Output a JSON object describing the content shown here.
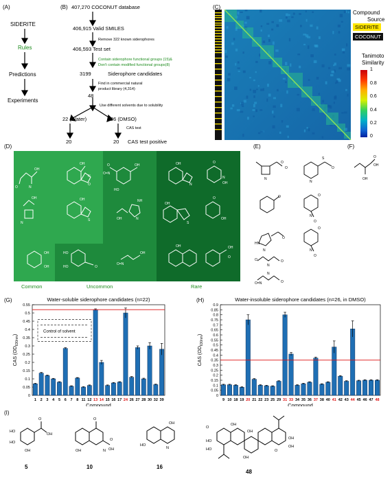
{
  "panels": {
    "a": {
      "letter": "(A)",
      "steps": [
        "SIDERITE",
        "Rules",
        "Predictions",
        "Experiments"
      ]
    },
    "b": {
      "letter": "(B)",
      "db": "407,270 COCONUT database",
      "valid": "406,915 Valid SMILES",
      "remove_note": "Remove 322 known siderophores",
      "test_set": "406,593 Test set",
      "contain_note_1": "Contain siderophore functional groups (15)&",
      "contain_note_2": "Don't contain modified functional groups(8)",
      "candidates_num": "3199",
      "candidates_label": "Siderophore candidates",
      "find_note_1": "Find in commercial natural",
      "find_note_2": "product library (4,314)",
      "n48": "48",
      "solvent_note": "Use different solvents due to solubility",
      "water": "22 (Water)",
      "dmso": "26 (DMSO)",
      "cas_test": "CAS test",
      "left20": "20",
      "right20": "20",
      "cas_positive": "CAS test positive"
    },
    "c": {
      "letter": "(C)",
      "legend_title_1": "Compound",
      "legend_title_2": "Source",
      "siderite_label": "SIDERITE",
      "coconut_label": "COCONUT",
      "scale_title_1": "Tanimoto",
      "scale_title_2": "Similarity",
      "scale_ticks": [
        "1",
        "0.8",
        "0.6",
        "0.4",
        "0.2",
        "0"
      ],
      "colors": {
        "siderite": "#ffe600",
        "coconut": "#111111"
      }
    },
    "d": {
      "letter": "(D)",
      "categories": [
        "Common",
        "Uncommon",
        "Rare"
      ],
      "colors": {
        "common": "#2fa84f",
        "uncommon": "#1e8a3c",
        "rare": "#0f6b2a"
      }
    },
    "e": {
      "letter": "(E)"
    },
    "f": {
      "letter": "(F)"
    },
    "g": {
      "letter": "(G)"
    },
    "h": {
      "letter": "(H)"
    },
    "i": {
      "letter": "(I)",
      "compounds": [
        "5",
        "10",
        "16",
        "48"
      ]
    }
  },
  "chart_data": [
    {
      "type": "bar",
      "title": "Water-soluble siderophore candidates (n=22)",
      "xlabel": "Compound",
      "ylabel": "CAS (OD630nm)",
      "ylabel_main": "CAS (OD",
      "ylabel_sub": "630nm",
      "ylabel_close": ")",
      "ylim": [
        0,
        0.55
      ],
      "yticks": [
        "0",
        "0.05",
        "0.1",
        "0.15",
        "0.2",
        "0.25",
        "0.3",
        "0.35",
        "0.4",
        "0.45",
        "0.5",
        "0.55"
      ],
      "threshold": 0.52,
      "legend": "Control of solvent",
      "categories": [
        "1",
        "2",
        "3",
        "4",
        "5",
        "6",
        "7",
        "8",
        "11",
        "12",
        "13",
        "14",
        "15",
        "16",
        "17",
        "24",
        "26",
        "27",
        "28",
        "30",
        "32",
        "39"
      ],
      "highlight": [
        "13",
        "14",
        "24"
      ],
      "values": [
        0.07,
        0.135,
        0.12,
        0.1,
        0.08,
        0.285,
        0.055,
        0.105,
        0.05,
        0.06,
        0.52,
        0.2,
        0.06,
        0.075,
        0.08,
        0.5,
        0.11,
        0.29,
        0.1,
        0.3,
        0.065,
        0.28
      ],
      "errors": [
        0.003,
        0.004,
        0.003,
        0.003,
        0.003,
        0.004,
        0.003,
        0.003,
        0.003,
        0.003,
        0.005,
        0.012,
        0.003,
        0.003,
        0.003,
        0.03,
        0.004,
        0.01,
        0.004,
        0.02,
        0.003,
        0.035
      ]
    },
    {
      "type": "bar",
      "title": "Water-insoluble siderophore candidates (n=26, in DMSO)",
      "xlabel": "Compound",
      "ylabel": "CAS (OD630nm)",
      "ylabel_main": "CAS (OD",
      "ylabel_sub": "630nm",
      "ylabel_close": ")",
      "ylim": [
        0,
        0.9
      ],
      "yticks": [
        "0",
        "0.05",
        "0.1",
        "0.15",
        "0.2",
        "0.25",
        "0.3",
        "0.35",
        "0.4",
        "0.45",
        "0.5",
        "0.55",
        "0.6",
        "0.65",
        "0.7",
        "0.75",
        "0.8",
        "0.85",
        "0.9"
      ],
      "threshold": 0.35,
      "categories": [
        "9",
        "10",
        "18",
        "19",
        "20",
        "21",
        "22",
        "23",
        "25",
        "29",
        "31",
        "33",
        "34",
        "35",
        "36",
        "37",
        "38",
        "40",
        "41",
        "42",
        "43",
        "44",
        "45",
        "46",
        "47",
        "48"
      ],
      "highlight": [
        "20",
        "31",
        "33",
        "37",
        "41",
        "44",
        "48"
      ],
      "values": [
        0.105,
        0.105,
        0.1,
        0.08,
        0.75,
        0.16,
        0.1,
        0.095,
        0.09,
        0.14,
        0.8,
        0.41,
        0.1,
        0.115,
        0.13,
        0.37,
        0.11,
        0.13,
        0.48,
        0.19,
        0.14,
        0.66,
        0.145,
        0.15,
        0.15,
        0.15
      ],
      "errors": [
        0.005,
        0.005,
        0.005,
        0.005,
        0.05,
        0.006,
        0.005,
        0.005,
        0.005,
        0.005,
        0.025,
        0.015,
        0.005,
        0.005,
        0.005,
        0.01,
        0.005,
        0.005,
        0.06,
        0.006,
        0.005,
        0.08,
        0.005,
        0.005,
        0.005,
        0.005
      ]
    }
  ]
}
